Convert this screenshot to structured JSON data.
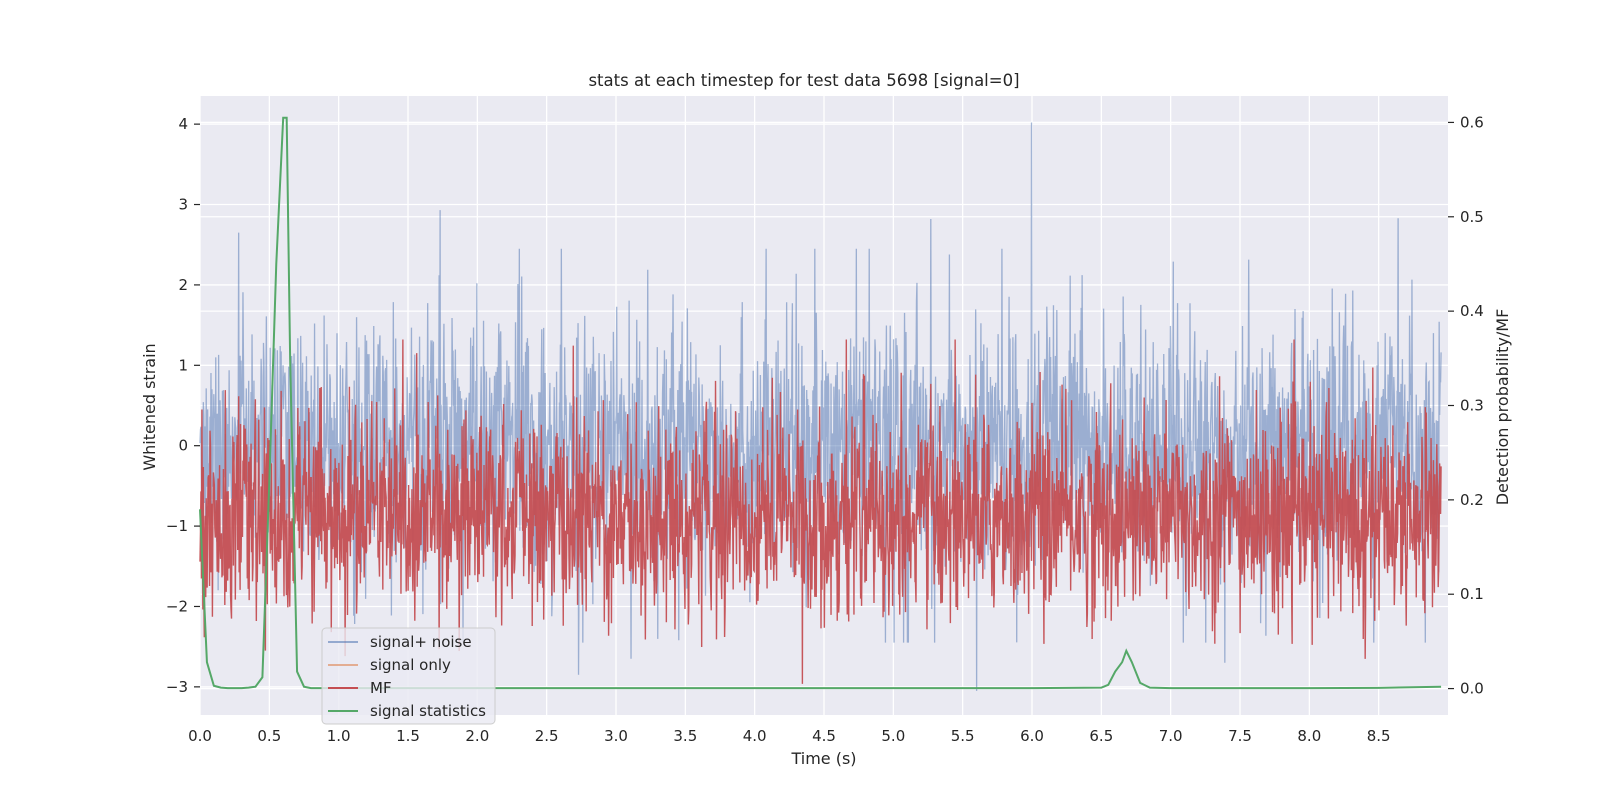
{
  "chart_data": {
    "type": "line",
    "title": "stats at each timestep for test data 5698 [signal=0]",
    "xlabel": "Time (s)",
    "ylabel_left": "Whitened strain",
    "ylabel_right": "Detection probability/MF",
    "xlim": [
      0.0,
      9.0
    ],
    "ylim_left": [
      -3.35,
      4.35
    ],
    "ylim_right": [
      -0.028,
      0.628
    ],
    "xticks": [
      "0.0",
      "0.5",
      "1.0",
      "1.5",
      "2.0",
      "2.5",
      "3.0",
      "3.5",
      "4.0",
      "4.5",
      "5.0",
      "5.5",
      "6.0",
      "6.5",
      "7.0",
      "7.5",
      "8.0",
      "8.5"
    ],
    "yticks_left": [
      "−3",
      "−2",
      "−1",
      "0",
      "1",
      "2",
      "3",
      "4"
    ],
    "yticks_right": [
      "0.0",
      "0.1",
      "0.2",
      "0.3",
      "0.4",
      "0.5",
      "0.6"
    ],
    "grid": true,
    "legend_position": "lower-left",
    "colors": {
      "plot_bg": "#eaeaf2",
      "grid": "#ffffff",
      "signal_noise": "#4c72b0",
      "signal_only": "#dd8452",
      "mf": "#c44e52",
      "signal_statistics": "#55a868"
    },
    "series": [
      {
        "name": "signal+ noise",
        "axis": "left",
        "description_values": {
          "approx_range": [
            -3.05,
            4.02
          ],
          "approx_typical_band": [
            -2.0,
            2.0
          ]
        },
        "peaks": [
          {
            "x": 5.995,
            "y": 4.02
          },
          {
            "x": 1.73,
            "y": 2.93
          },
          {
            "x": 5.6,
            "y": -3.05
          },
          {
            "x": 2.73,
            "y": -2.85
          },
          {
            "x": 3.11,
            "y": -2.65
          },
          {
            "x": 7.39,
            "y": -2.7
          },
          {
            "x": 8.64,
            "y": 2.83
          },
          {
            "x": 5.27,
            "y": 2.82
          },
          {
            "x": 0.28,
            "y": 2.65
          }
        ]
      },
      {
        "name": "signal only",
        "axis": "left",
        "values": []
      },
      {
        "name": "MF",
        "axis": "right",
        "description_values": {
          "approx_range": [
            0.0,
            0.37
          ],
          "approx_typical_band": [
            0.01,
            0.36
          ]
        }
      },
      {
        "name": "signal statistics",
        "axis": "right",
        "x": [
          0.0,
          0.05,
          0.1,
          0.15,
          0.2,
          0.25,
          0.3,
          0.35,
          0.4,
          0.45,
          0.5,
          0.55,
          0.6,
          0.625,
          0.65,
          0.7,
          0.75,
          0.8,
          1.0,
          2.0,
          3.0,
          4.0,
          5.0,
          6.0,
          6.5,
          6.55,
          6.6,
          6.65,
          6.68,
          6.72,
          6.78,
          6.85,
          7.0,
          8.0,
          8.5,
          8.95
        ],
        "y": [
          0.19,
          0.028,
          0.003,
          0.001,
          0.0005,
          0.0005,
          0.0005,
          0.001,
          0.002,
          0.012,
          0.22,
          0.45,
          0.605,
          0.605,
          0.35,
          0.018,
          0.002,
          0.0005,
          0.0005,
          0.0005,
          0.0005,
          0.0005,
          0.0005,
          0.0005,
          0.001,
          0.004,
          0.018,
          0.028,
          0.04,
          0.028,
          0.006,
          0.001,
          0.0005,
          0.0005,
          0.0008,
          0.002
        ]
      }
    ]
  }
}
